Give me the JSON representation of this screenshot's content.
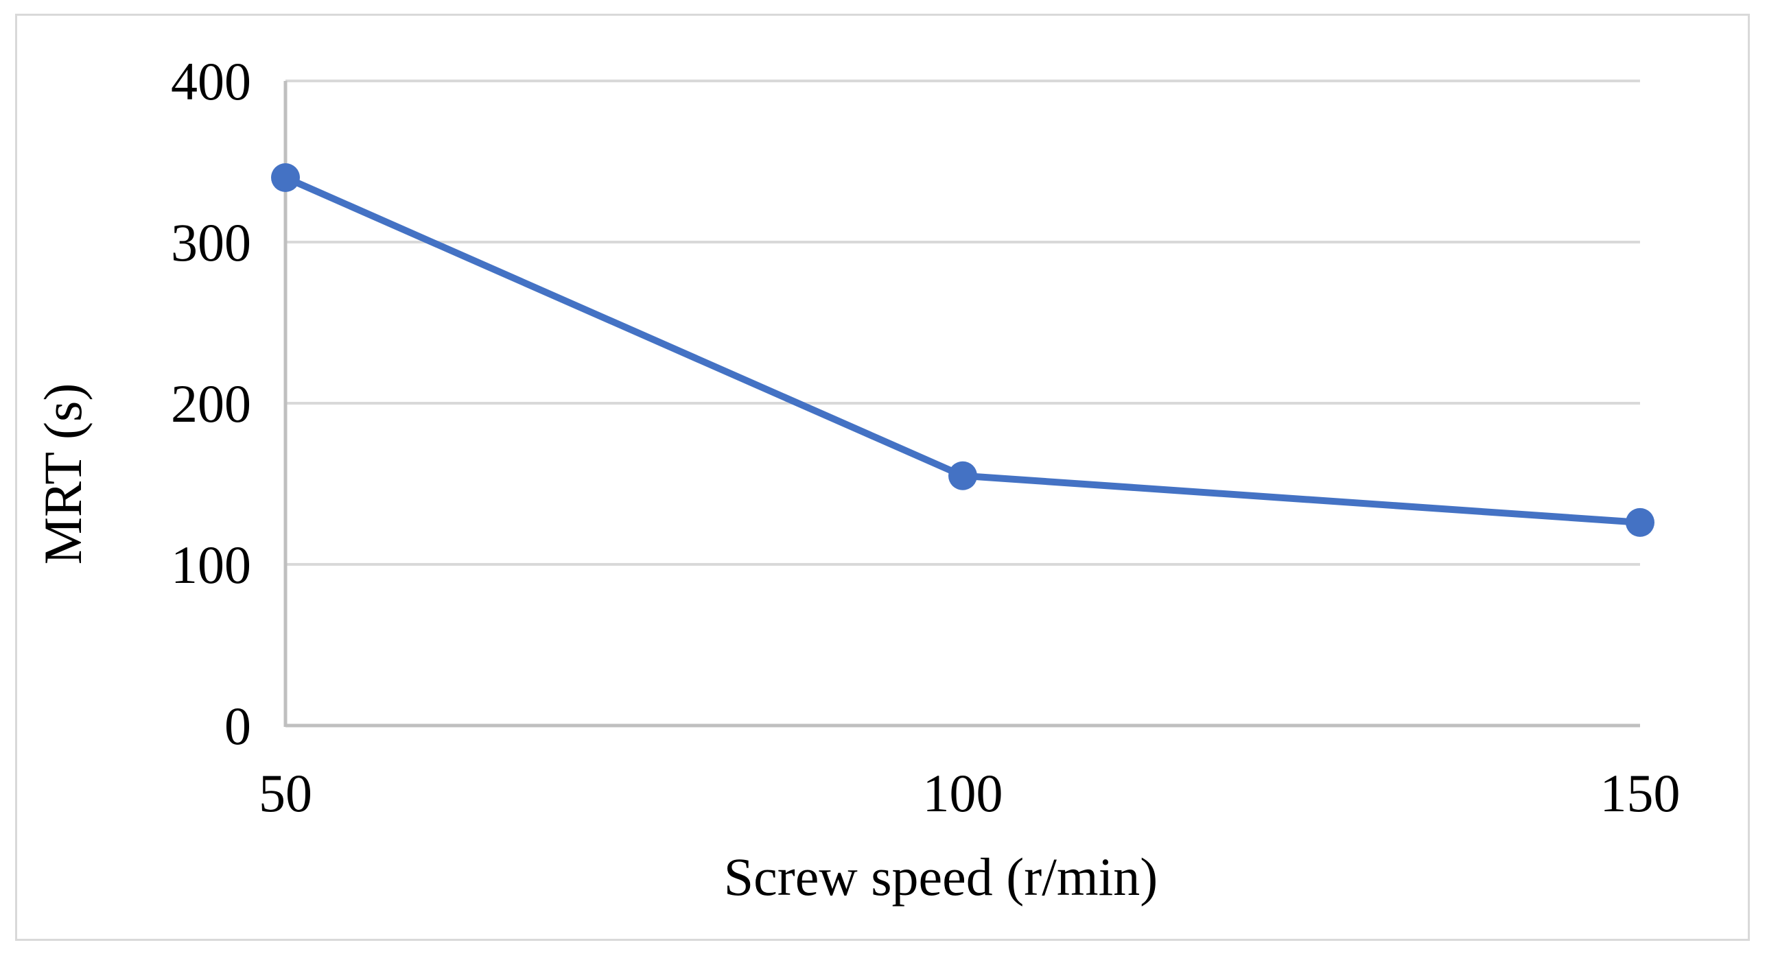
{
  "chart_data": {
    "type": "line",
    "title": "",
    "xlabel": "Screw speed (r/min)",
    "ylabel": "MRT (s)",
    "categories": [
      "50",
      "100",
      "150"
    ],
    "series": [
      {
        "values": [
          340,
          155,
          126
        ],
        "color": "#4472C4"
      }
    ],
    "ylim": [
      0,
      400
    ],
    "yticks": [
      "0",
      "100",
      "200",
      "300",
      "400"
    ],
    "grid": true,
    "legend": "none"
  },
  "colors": {
    "line": "#4472C4",
    "grid": "#d9d9d9",
    "axis": "#bfbfbf",
    "frame": "#d9d9d9"
  }
}
